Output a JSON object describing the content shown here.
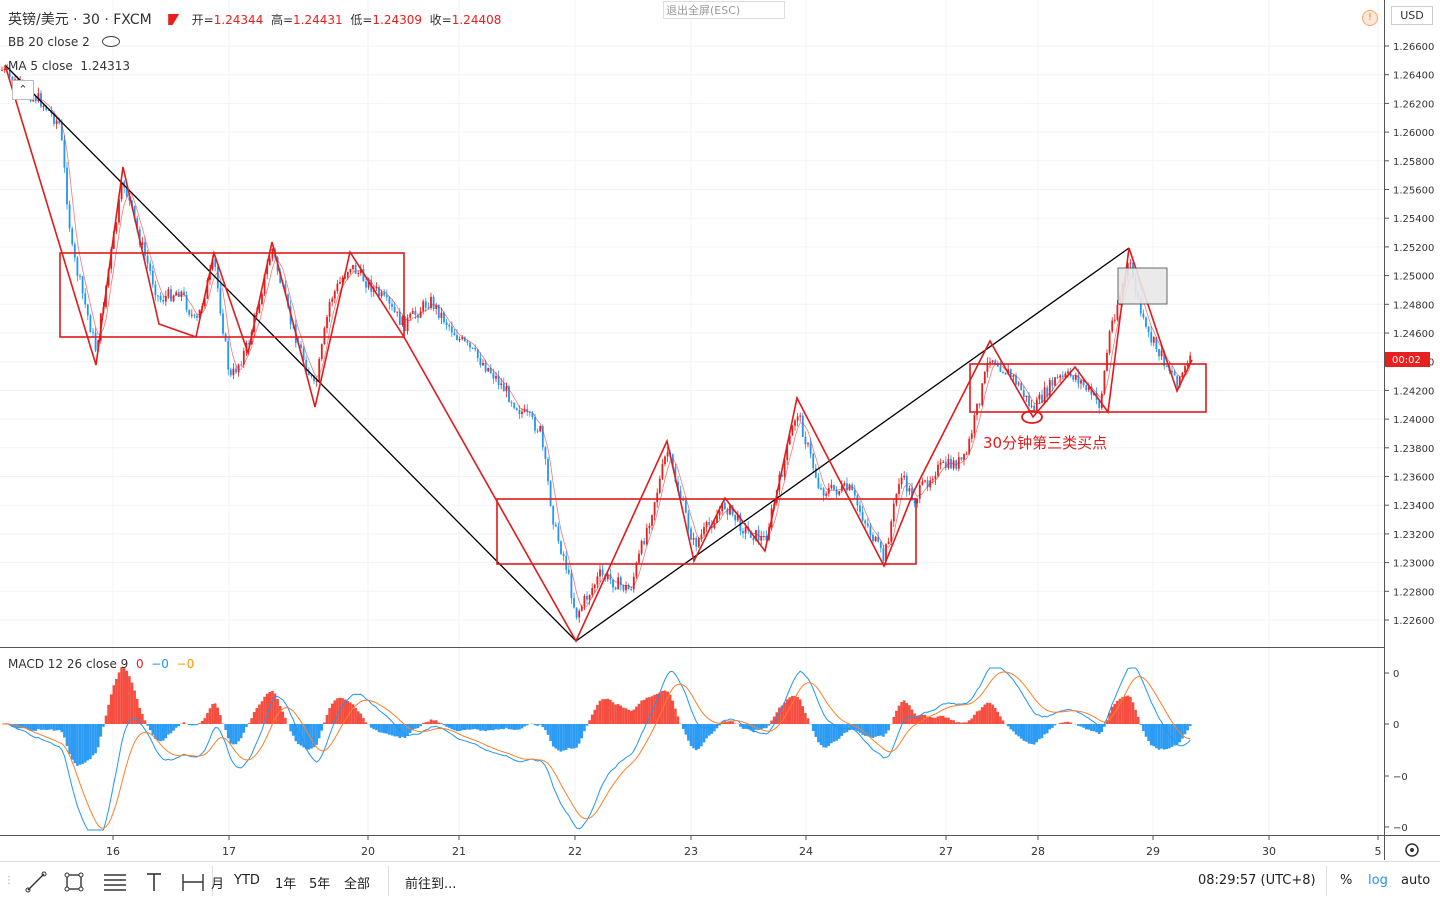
{
  "header": {
    "symbol": "英镑/美元 · 30 · FXCM",
    "open_label": "开",
    "open": "1.24344",
    "high_label": "高",
    "high": "1.24431",
    "low_label": "低",
    "low": "1.24309",
    "close_label": "收",
    "close": "1.24408",
    "exit_fullscreen": "退出全屏(ESC)",
    "currency": "USD"
  },
  "indicators": {
    "bb": "BB 20 close 2",
    "ma": "MA 5 close",
    "ma_value": "1.24313",
    "macd": "MACD 12 26 close 9",
    "macd_v1": "0",
    "macd_v2": "−0",
    "macd_v3": "−0"
  },
  "colors": {
    "up": "#e91e1e",
    "down": "#2196f3",
    "annotation": "#e01b1b",
    "trendline": "#000000",
    "macd_line": "#2196f3",
    "signal_line": "#ff7f2a"
  },
  "annotation_text": "30分钟第三类买点",
  "price_badge": "00:02",
  "toolbar": {
    "icons": [
      "trend-line-icon",
      "rectangle-icon",
      "fib-icon",
      "text-icon",
      "measure-icon"
    ],
    "ranges": [
      "月",
      "YTD",
      "1年",
      "5年",
      "全部"
    ],
    "goto": "前往到...",
    "time": "08:29:57 (UTC+8)",
    "percent": "%",
    "log": "log",
    "auto": "auto"
  },
  "chart_data": {
    "type": "candlestick",
    "price_axis": {
      "ticks": [
        "1.26600",
        "1.26400",
        "1.26200",
        "1.26000",
        "1.25800",
        "1.25600",
        "1.25400",
        "1.25200",
        "1.25000",
        "1.24800",
        "1.24600",
        "1.24400",
        "1.24200",
        "1.24000",
        "1.23800",
        "1.23600",
        "1.23400",
        "1.23200",
        "1.23000",
        "1.22800",
        "1.22600"
      ],
      "range": [
        1.2252,
        1.2672
      ]
    },
    "macd_axis": {
      "ticks": [
        "0",
        "0",
        "−0",
        "−0"
      ]
    },
    "date_axis": {
      "labels": [
        "16",
        "17",
        "20",
        "21",
        "22",
        "23",
        "24",
        "27",
        "28",
        "29",
        "30",
        "5"
      ]
    },
    "key_points": [
      {
        "date": "15",
        "price": 1.2645
      },
      {
        "date": "16",
        "price": 1.2575
      },
      {
        "date": "17",
        "price": 1.2458
      },
      {
        "date": "22",
        "price": 1.225
      },
      {
        "date": "28",
        "price": 1.2405
      },
      {
        "date": "29",
        "price": 1.2519
      },
      {
        "date": "29",
        "price": 1.24408
      }
    ]
  }
}
